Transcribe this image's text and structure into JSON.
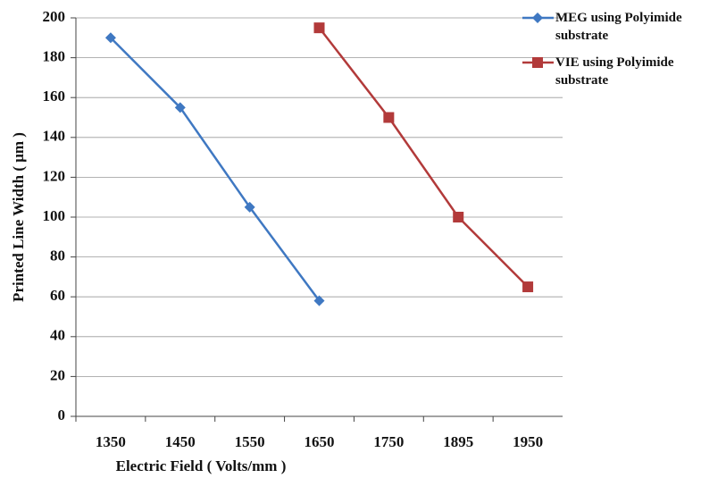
{
  "chart_data": {
    "type": "line",
    "x_label": "Electric Field ( Volts/mm )",
    "y_label": "Printed Line Width ( μm )",
    "categories": [
      "1350",
      "1450",
      "1550",
      "1650",
      "1750",
      "1895",
      "1950"
    ],
    "series": [
      {
        "name": "MEG using Polyimide substrate",
        "color": "#3f78c2",
        "marker": "diamond",
        "values": [
          190,
          155,
          105,
          58,
          null,
          null,
          null
        ]
      },
      {
        "name": "VIE using Polyimide substrate",
        "color": "#b23a3a",
        "marker": "square",
        "values": [
          null,
          null,
          null,
          195,
          150,
          100,
          65
        ]
      }
    ],
    "ylim": [
      0,
      200
    ],
    "yticks": [
      0,
      20,
      40,
      60,
      80,
      100,
      120,
      140,
      160,
      180,
      200
    ],
    "grid": true
  }
}
